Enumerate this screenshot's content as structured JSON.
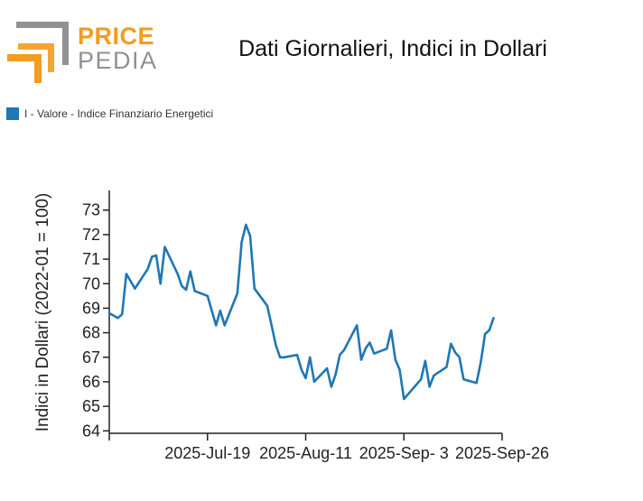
{
  "logo": {
    "line1": "PRICE",
    "line2": "PEDIA",
    "color_accent": "#f39c1f",
    "color_gray": "#8f9194"
  },
  "colors": {
    "series": "#1f77b4",
    "axis": "#222222"
  },
  "chart_data": {
    "type": "line",
    "title": "Dati Giornalieri, Indici in Dollari",
    "xlabel": "",
    "ylabel": "Indici in Dollari (2022-01 = 100)",
    "ylim": [
      63.9,
      73.8
    ],
    "yticks": [
      64,
      65,
      66,
      67,
      68,
      69,
      70,
      71,
      72,
      73
    ],
    "xlim": [
      "2025-06-26",
      "2025-09-26"
    ],
    "xticks": [
      {
        "date": "2025-06-26",
        "label": ""
      },
      {
        "date": "2025-07-19",
        "label": "2025-Jul-19"
      },
      {
        "date": "2025-08-11",
        "label": "2025-Aug-11"
      },
      {
        "date": "2025-09-03",
        "label": "2025-Sep- 3"
      },
      {
        "date": "2025-09-26",
        "label": "2025-Sep-26"
      }
    ],
    "legend_position": "top-left",
    "grid": false,
    "series": [
      {
        "name": "I - Valore - Indice Finanziario Energetici",
        "color": "#1f77b4",
        "points": [
          [
            "2025-06-26",
            68.8
          ],
          [
            "2025-06-27",
            68.7
          ],
          [
            "2025-06-28",
            68.6
          ],
          [
            "2025-06-29",
            68.75
          ],
          [
            "2025-06-30",
            70.4
          ],
          [
            "2025-07-02",
            69.8
          ],
          [
            "2025-07-05",
            70.6
          ],
          [
            "2025-07-06",
            71.1
          ],
          [
            "2025-07-07",
            71.15
          ],
          [
            "2025-07-08",
            70.0
          ],
          [
            "2025-07-09",
            71.5
          ],
          [
            "2025-07-12",
            70.4
          ],
          [
            "2025-07-13",
            69.9
          ],
          [
            "2025-07-14",
            69.75
          ],
          [
            "2025-07-15",
            70.5
          ],
          [
            "2025-07-16",
            69.7
          ],
          [
            "2025-07-19",
            69.5
          ],
          [
            "2025-07-21",
            68.3
          ],
          [
            "2025-07-22",
            68.9
          ],
          [
            "2025-07-23",
            68.3
          ],
          [
            "2025-07-26",
            69.6
          ],
          [
            "2025-07-27",
            71.7
          ],
          [
            "2025-07-28",
            72.4
          ],
          [
            "2025-07-29",
            71.95
          ],
          [
            "2025-07-30",
            69.8
          ],
          [
            "2025-08-02",
            69.1
          ],
          [
            "2025-08-03",
            68.3
          ],
          [
            "2025-08-04",
            67.5
          ],
          [
            "2025-08-05",
            67.0
          ],
          [
            "2025-08-06",
            67.0
          ],
          [
            "2025-08-09",
            67.1
          ],
          [
            "2025-08-10",
            66.5
          ],
          [
            "2025-08-11",
            66.15
          ],
          [
            "2025-08-12",
            67.0
          ],
          [
            "2025-08-13",
            66.0
          ],
          [
            "2025-08-16",
            66.55
          ],
          [
            "2025-08-17",
            65.8
          ],
          [
            "2025-08-18",
            66.3
          ],
          [
            "2025-08-19",
            67.1
          ],
          [
            "2025-08-20",
            67.3
          ],
          [
            "2025-08-23",
            68.3
          ],
          [
            "2025-08-24",
            66.9
          ],
          [
            "2025-08-25",
            67.35
          ],
          [
            "2025-08-26",
            67.6
          ],
          [
            "2025-08-27",
            67.15
          ],
          [
            "2025-08-30",
            67.35
          ],
          [
            "2025-08-31",
            68.1
          ],
          [
            "2025-09-01",
            66.9
          ],
          [
            "2025-09-02",
            66.5
          ],
          [
            "2025-09-03",
            65.3
          ],
          [
            "2025-09-06",
            65.9
          ],
          [
            "2025-09-07",
            66.1
          ],
          [
            "2025-09-08",
            66.85
          ],
          [
            "2025-09-09",
            65.8
          ],
          [
            "2025-09-10",
            66.25
          ],
          [
            "2025-09-13",
            66.6
          ],
          [
            "2025-09-14",
            67.55
          ],
          [
            "2025-09-15",
            67.2
          ],
          [
            "2025-09-16",
            67.0
          ],
          [
            "2025-09-17",
            66.1
          ],
          [
            "2025-09-20",
            65.95
          ],
          [
            "2025-09-21",
            66.8
          ],
          [
            "2025-09-22",
            67.95
          ],
          [
            "2025-09-23",
            68.1
          ],
          [
            "2025-09-24",
            68.6
          ]
        ]
      }
    ]
  }
}
